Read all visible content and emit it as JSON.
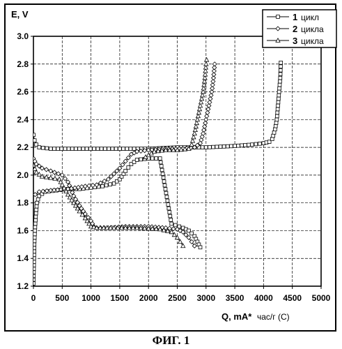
{
  "figure_caption": "ФИГ. 1",
  "chart_data": {
    "type": "line",
    "ylabel": "E, V",
    "xlabel": "Q, mA*",
    "xlabel_unit": "час/г (C)",
    "xlim": [
      0,
      5000
    ],
    "ylim": [
      1.2,
      3.0
    ],
    "x_ticks": [
      "0",
      "500",
      "1000",
      "1500",
      "2000",
      "2500",
      "3000",
      "3500",
      "4000",
      "4500",
      "5000"
    ],
    "y_ticks": [
      "1.2",
      "1.4",
      "1.6",
      "1.8",
      "2.0",
      "2.2",
      "2.4",
      "2.6",
      "2.8",
      "3.0"
    ],
    "grid": true,
    "legend_position": "top-right",
    "legend": [
      {
        "number": "1",
        "word": "цикл",
        "marker": "square"
      },
      {
        "number": "2",
        "word": "цикла",
        "marker": "diamond"
      },
      {
        "number": "3",
        "word": "цикла",
        "marker": "triangle"
      }
    ],
    "series": [
      {
        "name": "1 цикл",
        "marker": "square",
        "discharge": [
          [
            0,
            2.29
          ],
          [
            20,
            2.25
          ],
          [
            50,
            2.22
          ],
          [
            100,
            2.2
          ],
          [
            300,
            2.19
          ],
          [
            800,
            2.19
          ],
          [
            1500,
            2.19
          ],
          [
            2000,
            2.19
          ],
          [
            2500,
            2.2
          ],
          [
            3000,
            2.2
          ],
          [
            3500,
            2.21
          ],
          [
            3800,
            2.22
          ],
          [
            4000,
            2.23
          ],
          [
            4100,
            2.24
          ],
          [
            4150,
            2.26
          ],
          [
            4200,
            2.33
          ],
          [
            4230,
            2.4
          ],
          [
            4250,
            2.5
          ],
          [
            4270,
            2.6
          ],
          [
            4290,
            2.7
          ],
          [
            4300,
            2.81
          ]
        ],
        "charge": [
          [
            0,
            1.22
          ],
          [
            5,
            1.3
          ],
          [
            10,
            1.4
          ],
          [
            15,
            1.5
          ],
          [
            25,
            1.6
          ],
          [
            40,
            1.7
          ],
          [
            60,
            1.8
          ],
          [
            100,
            1.85
          ],
          [
            200,
            1.88
          ],
          [
            400,
            1.89
          ],
          [
            600,
            1.9
          ],
          [
            800,
            1.9
          ],
          [
            1000,
            1.91
          ],
          [
            1200,
            1.92
          ],
          [
            1400,
            1.94
          ],
          [
            1500,
            1.97
          ],
          [
            1600,
            2.03
          ],
          [
            1700,
            2.08
          ],
          [
            1800,
            2.11
          ],
          [
            2000,
            2.12
          ],
          [
            2200,
            2.12
          ],
          [
            2400,
            1.65
          ],
          [
            2600,
            1.62
          ],
          [
            2700,
            1.6
          ],
          [
            2800,
            1.56
          ],
          [
            2850,
            1.52
          ],
          [
            2900,
            1.48
          ]
        ]
      },
      {
        "name": "2 цикла",
        "marker": "diamond",
        "discharge": [
          [
            0,
            2.12
          ],
          [
            50,
            2.08
          ],
          [
            150,
            2.05
          ],
          [
            300,
            2.03
          ],
          [
            500,
            2.0
          ],
          [
            600,
            1.95
          ],
          [
            700,
            1.85
          ],
          [
            800,
            1.78
          ],
          [
            900,
            1.72
          ],
          [
            1000,
            1.67
          ],
          [
            1050,
            1.63
          ],
          [
            1100,
            1.62
          ],
          [
            1300,
            1.62
          ],
          [
            1600,
            1.63
          ],
          [
            2000,
            1.63
          ],
          [
            2300,
            1.62
          ],
          [
            2500,
            1.61
          ],
          [
            2600,
            1.59
          ],
          [
            2700,
            1.55
          ],
          [
            2750,
            1.52
          ],
          [
            2800,
            1.49
          ]
        ],
        "charge": [
          [
            30,
            1.86
          ],
          [
            100,
            1.88
          ],
          [
            300,
            1.89
          ],
          [
            600,
            1.9
          ],
          [
            900,
            1.92
          ],
          [
            1100,
            1.93
          ],
          [
            1300,
            1.97
          ],
          [
            1500,
            2.05
          ],
          [
            1600,
            2.1
          ],
          [
            1700,
            2.15
          ],
          [
            1800,
            2.17
          ],
          [
            2000,
            2.18
          ],
          [
            2300,
            2.19
          ],
          [
            2600,
            2.19
          ],
          [
            2800,
            2.2
          ],
          [
            2900,
            2.23
          ],
          [
            2950,
            2.3
          ],
          [
            3000,
            2.4
          ],
          [
            3050,
            2.5
          ],
          [
            3100,
            2.6
          ],
          [
            3130,
            2.7
          ],
          [
            3150,
            2.8
          ]
        ]
      },
      {
        "name": "3 цикла",
        "marker": "triangle",
        "discharge": [
          [
            0,
            2.07
          ],
          [
            50,
            2.02
          ],
          [
            150,
            1.99
          ],
          [
            300,
            1.98
          ],
          [
            450,
            1.97
          ],
          [
            500,
            1.93
          ],
          [
            600,
            1.86
          ],
          [
            700,
            1.8
          ],
          [
            800,
            1.74
          ],
          [
            900,
            1.69
          ],
          [
            1000,
            1.63
          ],
          [
            1100,
            1.62
          ],
          [
            1400,
            1.62
          ],
          [
            1800,
            1.62
          ],
          [
            2200,
            1.61
          ],
          [
            2400,
            1.59
          ],
          [
            2500,
            1.55
          ],
          [
            2550,
            1.52
          ],
          [
            2600,
            1.49
          ]
        ],
        "charge": [
          [
            1950,
            2.13
          ],
          [
            2100,
            2.17
          ],
          [
            2300,
            2.18
          ],
          [
            2500,
            2.18
          ],
          [
            2700,
            2.19
          ],
          [
            2750,
            2.22
          ],
          [
            2800,
            2.3
          ],
          [
            2850,
            2.4
          ],
          [
            2900,
            2.5
          ],
          [
            2950,
            2.6
          ],
          [
            2980,
            2.7
          ],
          [
            3000,
            2.8
          ],
          [
            3010,
            2.83
          ]
        ]
      }
    ]
  }
}
